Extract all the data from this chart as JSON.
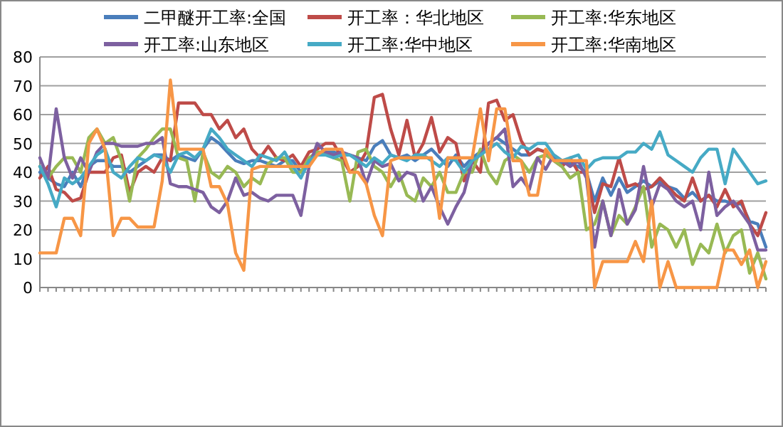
{
  "chart_data": {
    "type": "line",
    "categories": [
      null,
      null,
      null,
      null,
      null,
      null,
      null,
      null,
      null,
      null,
      null,
      null,
      null,
      null,
      null,
      null,
      null,
      null,
      null,
      null,
      null,
      null,
      null,
      null,
      null,
      null,
      null,
      null,
      null,
      null,
      null,
      null,
      null,
      null,
      null,
      null,
      null,
      null,
      null,
      null,
      null,
      null,
      null,
      null,
      null,
      null,
      null,
      null,
      null,
      null,
      null,
      null,
      null,
      null,
      null,
      null,
      null,
      null,
      null,
      null,
      null,
      null,
      null,
      null,
      null,
      null,
      null,
      null,
      null,
      null,
      null,
      null,
      null,
      null,
      null,
      null,
      null,
      null,
      null,
      null,
      null,
      null,
      null,
      null,
      null,
      null,
      null,
      null,
      null,
      null
    ],
    "series": [
      {
        "name": "二甲醚开工率:全国",
        "color": "#4a7ebb",
        "values": [
          40,
          38,
          36,
          35,
          40,
          35,
          42,
          44,
          44,
          42,
          42,
          40,
          42,
          44,
          46,
          46,
          44,
          46,
          45,
          44,
          48,
          52,
          50,
          47,
          44,
          43,
          44,
          44,
          43,
          42,
          44,
          44,
          40,
          44,
          46,
          47,
          47,
          46,
          46,
          45,
          44,
          49,
          51,
          46,
          45,
          46,
          44,
          46,
          48,
          45,
          42,
          46,
          42,
          45,
          47,
          50,
          52,
          50,
          48,
          46,
          46,
          48,
          47,
          45,
          43,
          43,
          42,
          40,
          30,
          38,
          32,
          38,
          33,
          35,
          37,
          35,
          37,
          35,
          34,
          31,
          33,
          30,
          32,
          30,
          30,
          29,
          29,
          23,
          22,
          14
        ]
      },
      {
        "name": "开工率：华北地区",
        "color": "#be4b48",
        "values": [
          38,
          42,
          34,
          33,
          30,
          31,
          40,
          40,
          40,
          45,
          46,
          33,
          40,
          42,
          40,
          45,
          44,
          64,
          64,
          64,
          60,
          60,
          55,
          58,
          52,
          55,
          48,
          45,
          49,
          45,
          44,
          46,
          42,
          47,
          48,
          50,
          50,
          45,
          40,
          42,
          47,
          66,
          67,
          55,
          46,
          58,
          45,
          50,
          59,
          47,
          52,
          50,
          37,
          44,
          40,
          64,
          65,
          58,
          60,
          51,
          46,
          48,
          47,
          44,
          42,
          45,
          40,
          40,
          26,
          36,
          35,
          45,
          35,
          36,
          34,
          35,
          38,
          35,
          32,
          30,
          38,
          30,
          32,
          28,
          34,
          28,
          30,
          22,
          18,
          26
        ]
      },
      {
        "name": "开工率:华东地区",
        "color": "#98b954",
        "values": [
          42,
          38,
          42,
          45,
          45,
          40,
          52,
          55,
          50,
          52,
          44,
          30,
          45,
          48,
          52,
          55,
          55,
          45,
          44,
          30,
          47,
          40,
          38,
          42,
          40,
          35,
          38,
          36,
          43,
          45,
          45,
          40,
          40,
          45,
          47,
          47,
          45,
          44,
          30,
          47,
          48,
          42,
          40,
          35,
          40,
          32,
          30,
          38,
          35,
          40,
          33,
          33,
          40,
          40,
          48,
          40,
          36,
          44,
          46,
          44,
          40,
          45,
          46,
          44,
          42,
          38,
          40,
          20,
          22,
          30,
          18,
          25,
          22,
          28,
          35,
          14,
          22,
          20,
          14,
          20,
          8,
          15,
          12,
          22,
          12,
          18,
          20,
          5,
          12,
          3
        ]
      },
      {
        "name": "开工率:山东地区",
        "color": "#7d60a0",
        "values": [
          45,
          38,
          62,
          45,
          38,
          45,
          40,
          47,
          50,
          50,
          49,
          49,
          49,
          50,
          50,
          52,
          36,
          35,
          35,
          34,
          33,
          28,
          26,
          30,
          38,
          32,
          33,
          31,
          30,
          32,
          32,
          32,
          25,
          42,
          50,
          47,
          46,
          47,
          46,
          45,
          36,
          44,
          42,
          43,
          37,
          40,
          39,
          30,
          35,
          28,
          22,
          28,
          33,
          44,
          46,
          50,
          52,
          55,
          35,
          38,
          34,
          45,
          41,
          46,
          44,
          42,
          44,
          38,
          14,
          30,
          18,
          34,
          22,
          27,
          42,
          28,
          36,
          34,
          30,
          28,
          30,
          20,
          40,
          25,
          28,
          30,
          26,
          22,
          13,
          13
        ]
      },
      {
        "name": "开工率:华中地区",
        "color": "#46aac5",
        "values": [
          42,
          36,
          28,
          38,
          36,
          38,
          42,
          46,
          48,
          40,
          38,
          42,
          45,
          44,
          46,
          45,
          40,
          46,
          47,
          45,
          48,
          55,
          52,
          48,
          46,
          44,
          42,
          46,
          45,
          44,
          47,
          42,
          38,
          44,
          46,
          46,
          45,
          46,
          46,
          44,
          42,
          45,
          43,
          46,
          45,
          44,
          46,
          46,
          44,
          42,
          45,
          44,
          40,
          44,
          46,
          48,
          50,
          47,
          45,
          49,
          48,
          50,
          50,
          46,
          44,
          45,
          46,
          41,
          44,
          45,
          45,
          45,
          47,
          47,
          50,
          48,
          54,
          46,
          44,
          42,
          40,
          45,
          48,
          48,
          36,
          48,
          44,
          40,
          36,
          37
        ]
      },
      {
        "name": "开工率:华南地区",
        "color": "#f79646",
        "values": [
          12,
          12,
          12,
          24,
          24,
          18,
          50,
          55,
          48,
          18,
          24,
          24,
          21,
          21,
          21,
          37,
          72,
          48,
          48,
          48,
          48,
          35,
          35,
          29,
          12,
          6,
          41,
          42,
          42,
          42,
          42,
          42,
          42,
          42,
          46,
          48,
          48,
          48,
          40,
          40,
          36,
          25,
          18,
          44,
          45,
          45,
          45,
          45,
          45,
          24,
          45,
          45,
          45,
          45,
          62,
          44,
          62,
          62,
          44,
          44,
          32,
          32,
          48,
          44,
          44,
          44,
          44,
          44,
          0,
          9,
          9,
          9,
          9,
          16,
          9,
          30,
          0,
          9,
          0,
          0,
          0,
          0,
          0,
          0,
          13,
          13,
          8,
          13,
          0,
          9
        ]
      }
    ],
    "ylim": [
      0,
      80
    ],
    "yticks": [
      0,
      10,
      20,
      30,
      40,
      50,
      60,
      70,
      80
    ],
    "grid": "y",
    "legend": "top",
    "tick_labels": "y",
    "marker": "none",
    "line_style": "solid"
  }
}
